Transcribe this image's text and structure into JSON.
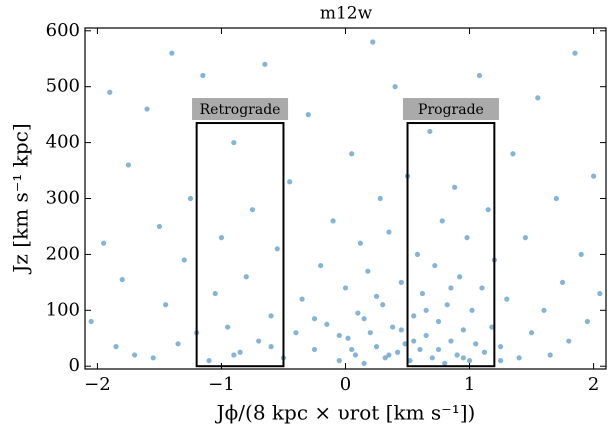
{
  "chart_data": {
    "type": "scatter",
    "title": "m12w",
    "xlabel": "Jϕ/(8 kpc × υrot [km s⁻¹])",
    "ylabel": "Jz [km s⁻¹ kpc]",
    "xlim": [
      -2.1,
      2.1
    ],
    "ylim": [
      -5,
      605
    ],
    "xticks": [
      {
        "value": -2,
        "label": "−2"
      },
      {
        "value": -1,
        "label": "−1"
      },
      0,
      1,
      2
    ],
    "yticks": [
      0,
      100,
      200,
      300,
      400,
      500,
      600
    ],
    "series": [
      {
        "color": "#1f77b4",
        "x": [
          -2.05,
          -1.95,
          -1.9,
          -1.85,
          -1.8,
          -1.75,
          -1.7,
          -1.6,
          -1.55,
          -1.5,
          -1.45,
          -1.4,
          -1.35,
          -1.3,
          -1.25,
          -1.2,
          -1.15,
          -1.1,
          -1.05,
          -1.0,
          -0.95,
          -0.9,
          -0.85,
          -0.8,
          -0.75,
          -0.7,
          -0.65,
          -0.6,
          -0.55,
          -0.5,
          -0.45,
          -0.4,
          -0.35,
          -0.3,
          -0.25,
          -0.2,
          -0.15,
          -0.1,
          -0.05,
          0,
          0.02,
          0.05,
          0.08,
          0.1,
          0.12,
          0.15,
          0.18,
          0.2,
          0.22,
          0.25,
          0.28,
          0.3,
          0.32,
          0.35,
          0.38,
          0.4,
          0.42,
          0.45,
          0.48,
          0.5,
          0.52,
          0.55,
          0.58,
          0.6,
          0.62,
          0.65,
          0.68,
          0.7,
          0.72,
          0.75,
          0.78,
          0.8,
          0.82,
          0.85,
          0.88,
          0.9,
          0.92,
          0.95,
          0.98,
          1,
          1.02,
          1.05,
          1.08,
          1.1,
          1.12,
          1.15,
          1.18,
          1.2,
          1.25,
          1.3,
          1.35,
          1.4,
          1.45,
          1.5,
          1.55,
          1.6,
          1.65,
          1.7,
          1.75,
          1.8,
          1.85,
          1.9,
          1.95,
          2,
          2.05,
          -0.05,
          0.15,
          0.35,
          0.55,
          0.75,
          0.95,
          0.25,
          0.45,
          0.65,
          0.85,
          0.05,
          -0.25,
          -0.6,
          -0.9,
          1.25
        ],
        "y": [
          80,
          220,
          490,
          35,
          155,
          360,
          20,
          460,
          15,
          250,
          110,
          560,
          40,
          190,
          300,
          60,
          520,
          10,
          130,
          230,
          70,
          400,
          25,
          160,
          280,
          45,
          540,
          90,
          210,
          15,
          330,
          60,
          120,
          450,
          30,
          180,
          75,
          260,
          10,
          140,
          50,
          380,
          20,
          95,
          220,
          5,
          170,
          60,
          580,
          35,
          300,
          110,
          15,
          240,
          70,
          500,
          25,
          150,
          40,
          340,
          10,
          90,
          200,
          30,
          130,
          55,
          420,
          15,
          180,
          80,
          260,
          5,
          110,
          45,
          320,
          20,
          160,
          65,
          230,
          10,
          100,
          40,
          520,
          140,
          25,
          280,
          70,
          190,
          35,
          120,
          380,
          15,
          230,
          60,
          480,
          100,
          20,
          300,
          150,
          45,
          560,
          200,
          80,
          340,
          130,
          55,
          85,
          20,
          45,
          30,
          15,
          125,
          65,
          100,
          140,
          30,
          85,
          35,
          20,
          10
        ]
      }
    ],
    "regions": [
      {
        "label": "Retrograde",
        "xlim": [
          -1.2,
          -0.5
        ],
        "ylim": [
          0,
          435
        ]
      },
      {
        "label": "Prograde",
        "xlim": [
          0.5,
          1.2
        ],
        "ylim": [
          0,
          435
        ]
      }
    ]
  }
}
